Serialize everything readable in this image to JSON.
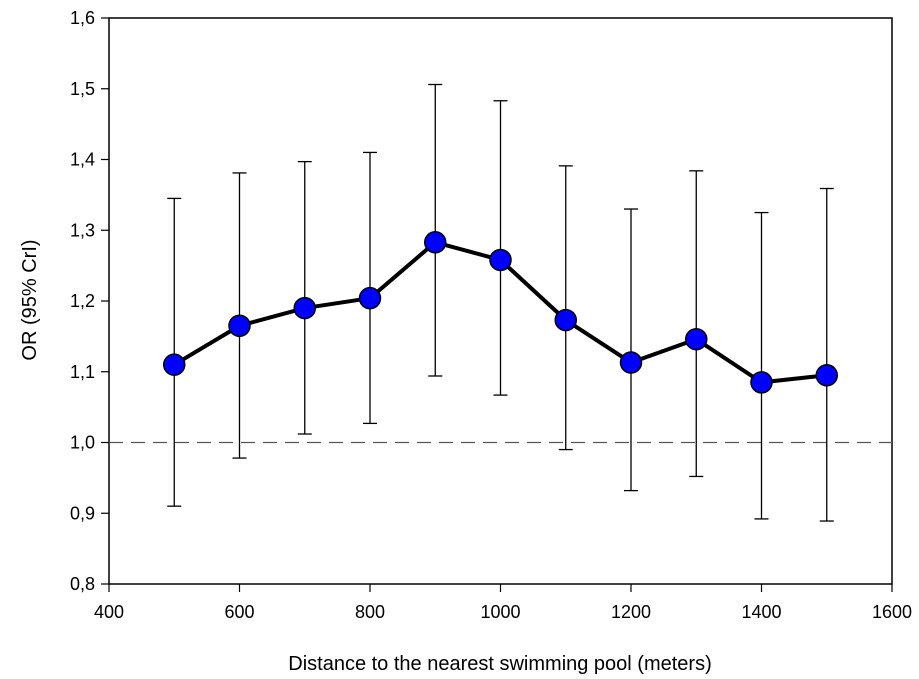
{
  "chart_data": {
    "type": "line",
    "title": "",
    "xlabel": "Distance to the nearest swimming pool (meters)",
    "ylabel": "OR (95% CrI)",
    "xlim": [
      400,
      1600
    ],
    "ylim": [
      0.8,
      1.6
    ],
    "x_ticks": [
      400,
      600,
      800,
      1000,
      1200,
      1400,
      1600
    ],
    "x_tick_labels": [
      "400",
      "600",
      "800",
      "1000",
      "1200",
      "1400",
      "1600"
    ],
    "y_ticks": [
      0.8,
      0.9,
      1.0,
      1.1,
      1.2,
      1.3,
      1.4,
      1.5,
      1.6
    ],
    "y_tick_labels": [
      "0,8",
      "0,9",
      "1,0",
      "1,1",
      "1,2",
      "1,3",
      "1,4",
      "1,5",
      "1,6"
    ],
    "reference_line": 1.0,
    "grid": false,
    "series": [
      {
        "x": [
          500,
          600,
          700,
          800,
          900,
          1000,
          1100,
          1200,
          1300,
          1400,
          1500
        ],
        "y": [
          1.11,
          1.165,
          1.19,
          1.204,
          1.283,
          1.258,
          1.173,
          1.113,
          1.146,
          1.085,
          1.095
        ],
        "lower": [
          0.91,
          0.978,
          1.012,
          1.027,
          1.094,
          1.067,
          0.99,
          0.932,
          0.952,
          0.892,
          0.889
        ],
        "upper": [
          1.345,
          1.381,
          1.397,
          1.41,
          1.506,
          1.483,
          1.391,
          1.33,
          1.384,
          1.325,
          1.359
        ],
        "color": "#0000ff"
      }
    ]
  }
}
